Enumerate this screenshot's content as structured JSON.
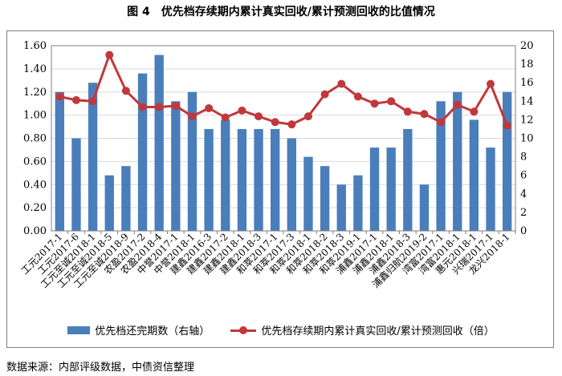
{
  "figure": {
    "number": "图 4",
    "title": "优先档存续期内累计真实回收/累计预测回收的比值情况"
  },
  "source": "数据来源：内部评级数据，中债资信整理",
  "colors": {
    "bar": "#4a7ebb",
    "line": "#c0383b",
    "grid": "#d9d9d9",
    "axis": "#7f7f7f"
  },
  "chart_data": {
    "type": "bar",
    "categories": [
      "工元2017-1",
      "工元2017-6",
      "工元至诚2018-1",
      "工元至诚2018-5",
      "工元至诚2018-9",
      "农盈2017-2",
      "农盈2018-4",
      "中誉2017-1",
      "中誉2018-1",
      "建鑫2016-3",
      "建鑫2017-2",
      "建鑫2018-1",
      "建鑫2018-3",
      "和萃2017-1",
      "和萃2017-3",
      "和萃2018-1",
      "和萃2018-2",
      "和萃2018-3",
      "和萃2019-1",
      "浦鑫2017-1",
      "浦鑫2018-1",
      "浦鑫2018-3",
      "浦鑫归航2019-2",
      "湾富2017-1",
      "湾富2018-1",
      "惠元2018-1",
      "兴瑞2017-1",
      "龙兴2018-1"
    ],
    "series": [
      {
        "name": "优先档还完期数（右轴）",
        "type": "bar",
        "axis": "right",
        "values": [
          15,
          10,
          16,
          6,
          7,
          17,
          19,
          14,
          15,
          11,
          12,
          11,
          11,
          11,
          10,
          8,
          7,
          5,
          6,
          9,
          9,
          11,
          5,
          14,
          15,
          12,
          9,
          15
        ]
      },
      {
        "name": "优先档存续期内累计真实回收/累计预测回收（倍）",
        "type": "line",
        "axis": "left",
        "values": [
          1.16,
          1.13,
          1.12,
          1.52,
          1.21,
          1.07,
          1.07,
          1.08,
          0.99,
          1.06,
          0.98,
          1.04,
          0.99,
          0.94,
          0.92,
          0.99,
          1.18,
          1.27,
          1.16,
          1.1,
          1.12,
          1.03,
          1.01,
          0.94,
          1.09,
          1.03,
          1.27,
          0.91
        ]
      }
    ],
    "y_left": {
      "min": 0,
      "max": 1.6,
      "ticks": [
        "0.00",
        "0.20",
        "0.40",
        "0.60",
        "0.80",
        "1.00",
        "1.20",
        "1.40",
        "1.60"
      ]
    },
    "y_right": {
      "min": 0,
      "max": 20,
      "ticks": [
        "0",
        "2",
        "4",
        "6",
        "8",
        "10",
        "12",
        "14",
        "16",
        "18",
        "20"
      ]
    },
    "grid": true,
    "legend_position": "bottom"
  }
}
